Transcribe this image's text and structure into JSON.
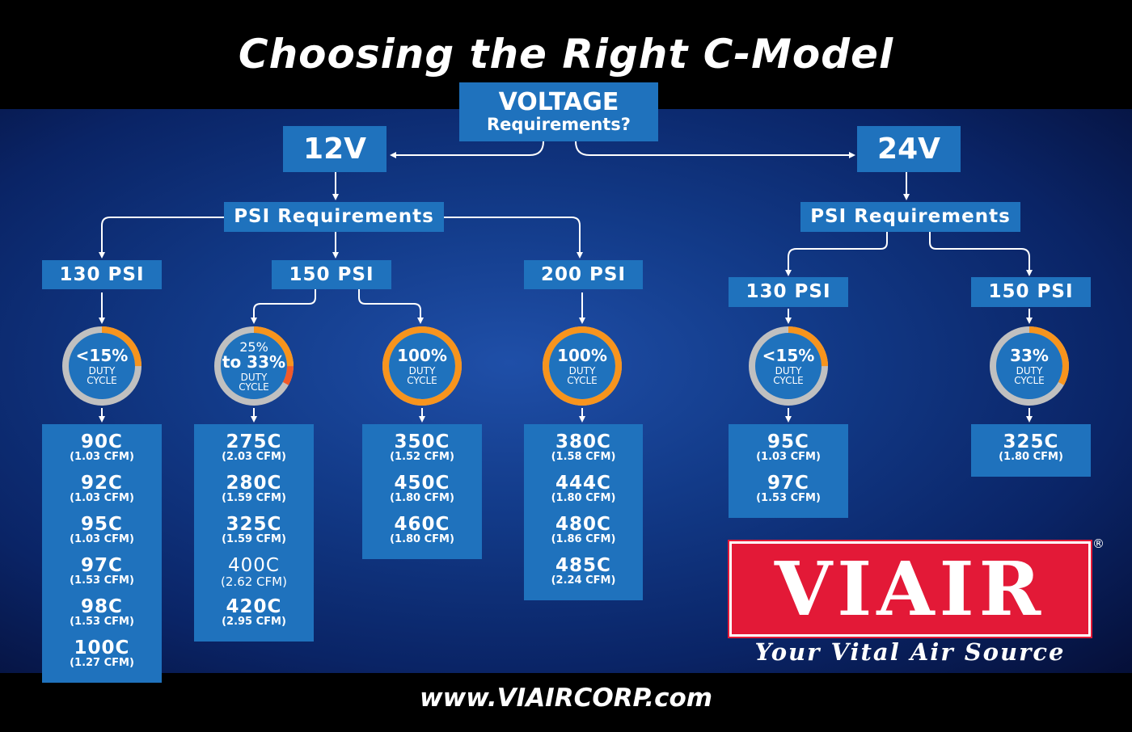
{
  "title": "Choosing the Right C-Model",
  "voltage": {
    "line1": "VOLTAGE",
    "line2": "Requirements?"
  },
  "v12": {
    "label": "12V",
    "psi_req": "PSI Requirements",
    "branches": [
      {
        "psi": "130 PSI",
        "gauge": {
          "main": "<15%",
          "pre": "",
          "sub1": "DUTY",
          "sub2": "CYCLE",
          "fill": 0.25,
          "extra": 0
        },
        "models": [
          [
            "90C",
            "(1.03 CFM)"
          ],
          [
            "92C",
            "(1.03 CFM)"
          ],
          [
            "95C",
            "(1.03 CFM)"
          ],
          [
            "97C",
            "(1.53 CFM)"
          ],
          [
            "98C",
            "(1.53 CFM)"
          ],
          [
            "100C",
            "(1.27 CFM)"
          ]
        ]
      },
      {
        "psi": "150 PSI",
        "gauge": {
          "main": "to 33%",
          "pre": "25%",
          "sub1": "DUTY",
          "sub2": "CYCLE",
          "fill": 0.25,
          "extra": 0.08
        },
        "models": [
          [
            "275C",
            "(2.03 CFM)"
          ],
          [
            "280C",
            "(1.59 CFM)"
          ],
          [
            "325C",
            "(1.59 CFM)"
          ],
          [
            "400C",
            "(2.62 CFM)"
          ],
          [
            "420C",
            "(2.95 CFM)"
          ]
        ]
      },
      {
        "psi": "",
        "gauge": {
          "main": "100%",
          "pre": "",
          "sub1": "DUTY",
          "sub2": "CYCLE",
          "fill": 1,
          "extra": 0
        },
        "models": [
          [
            "350C",
            "(1.52 CFM)"
          ],
          [
            "450C",
            "(1.80 CFM)"
          ],
          [
            "460C",
            "(1.80 CFM)"
          ]
        ]
      },
      {
        "psi": "200 PSI",
        "gauge": {
          "main": "100%",
          "pre": "",
          "sub1": "DUTY",
          "sub2": "CYCLE",
          "fill": 1,
          "extra": 0
        },
        "models": [
          [
            "380C",
            "(1.58 CFM)"
          ],
          [
            "444C",
            "(1.80 CFM)"
          ],
          [
            "480C",
            "(1.86 CFM)"
          ],
          [
            "485C",
            "(2.24 CFM)"
          ]
        ]
      }
    ]
  },
  "v24": {
    "label": "24V",
    "psi_req": "PSI Requirements",
    "branches": [
      {
        "psi": "130 PSI",
        "gauge": {
          "main": "<15%",
          "pre": "",
          "sub1": "DUTY",
          "sub2": "CYCLE",
          "fill": 0.25,
          "extra": 0
        },
        "models": [
          [
            "95C",
            "(1.03 CFM)"
          ],
          [
            "97C",
            "(1.53 CFM)"
          ]
        ]
      },
      {
        "psi": "150 PSI",
        "gauge": {
          "main": "33%",
          "pre": "",
          "sub1": "DUTY",
          "sub2": "CYCLE",
          "fill": 0.33,
          "extra": 0
        },
        "models": [
          [
            "325C",
            "(1.80 CFM)"
          ]
        ]
      }
    ]
  },
  "logo": {
    "text": "VIAIR",
    "registered": "®",
    "tagline": "Your Vital Air Source"
  },
  "url": "www.VIAIRCORP.com",
  "colors": {
    "box": "#1f72bd",
    "gauge_track": "#c0c0c0",
    "gauge_fill": "#f7941d",
    "gauge_extra": "#f15a29",
    "logo_red": "#e31937"
  }
}
